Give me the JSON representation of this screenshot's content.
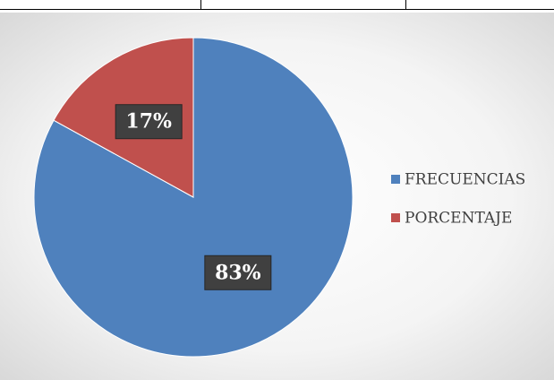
{
  "chart_data": {
    "type": "pie",
    "categories": [
      "FRECUENCIAS",
      "PORCENTAJE"
    ],
    "values": [
      83,
      17
    ],
    "value_labels": [
      "83%",
      "17%"
    ],
    "colors": [
      "#4f81bd",
      "#c0504d"
    ],
    "legend": "right"
  }
}
